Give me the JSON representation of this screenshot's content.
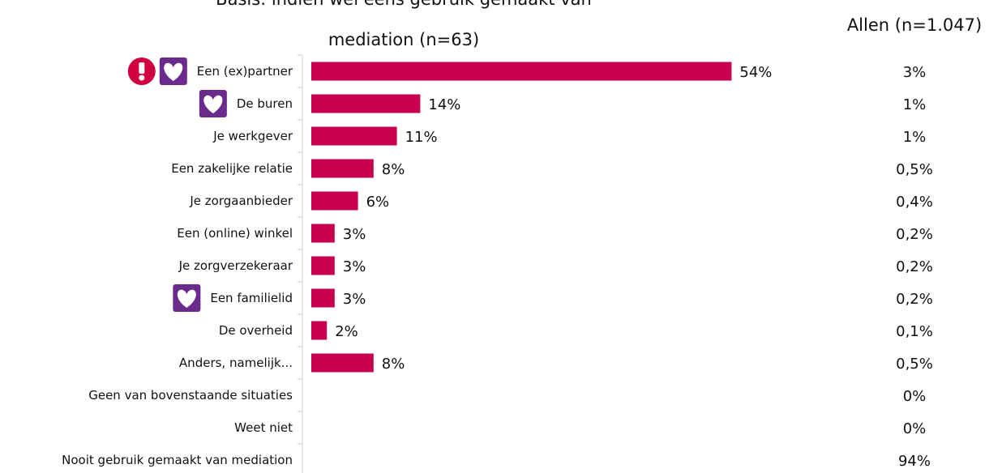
{
  "chart_data": {
    "type": "bar",
    "orientation": "horizontal",
    "title_lines": [
      "Basis: indien wel eens gebruik gemaakt van",
      "mediation (n=63)"
    ],
    "comparison_header": "Allen (n=1.047)",
    "categories": [
      "Een (ex)partner",
      "De buren",
      "Je werkgever",
      "Een zakelijke relatie",
      "Je zorgaanbieder",
      "Een (online) winkel",
      "Je zorgverzekeraar",
      "Een familielid",
      "De overheid",
      "Anders, namelijk...",
      "Geen van bovenstaande situaties",
      "Weet niet",
      "Nooit gebruik gemaakt van mediation"
    ],
    "values": [
      54,
      14,
      11,
      8,
      6,
      3,
      3,
      3,
      2,
      8,
      null,
      null,
      null
    ],
    "value_labels": [
      "54%",
      "14%",
      "11%",
      "8%",
      "6%",
      "3%",
      "3%",
      "3%",
      "2%",
      "8%",
      "",
      "",
      ""
    ],
    "allen_labels": [
      "3%",
      "1%",
      "1%",
      "0,5%",
      "0,4%",
      "0,2%",
      "0,2%",
      "0,2%",
      "0,1%",
      "0,5%",
      "0%",
      "0%",
      "94%"
    ],
    "icons": [
      [
        "exclamation-icon",
        "heart-icon"
      ],
      [
        "heart-icon"
      ],
      [],
      [],
      [],
      [],
      [],
      [
        "heart-icon"
      ],
      [],
      [],
      [],
      [],
      []
    ],
    "xlim": [
      0,
      60
    ],
    "bar_color": "#c8004f",
    "icon_colors": {
      "exclamation": "#d1003f",
      "heart_bg": "#6a2b8c",
      "heart": "#ffffff"
    }
  }
}
